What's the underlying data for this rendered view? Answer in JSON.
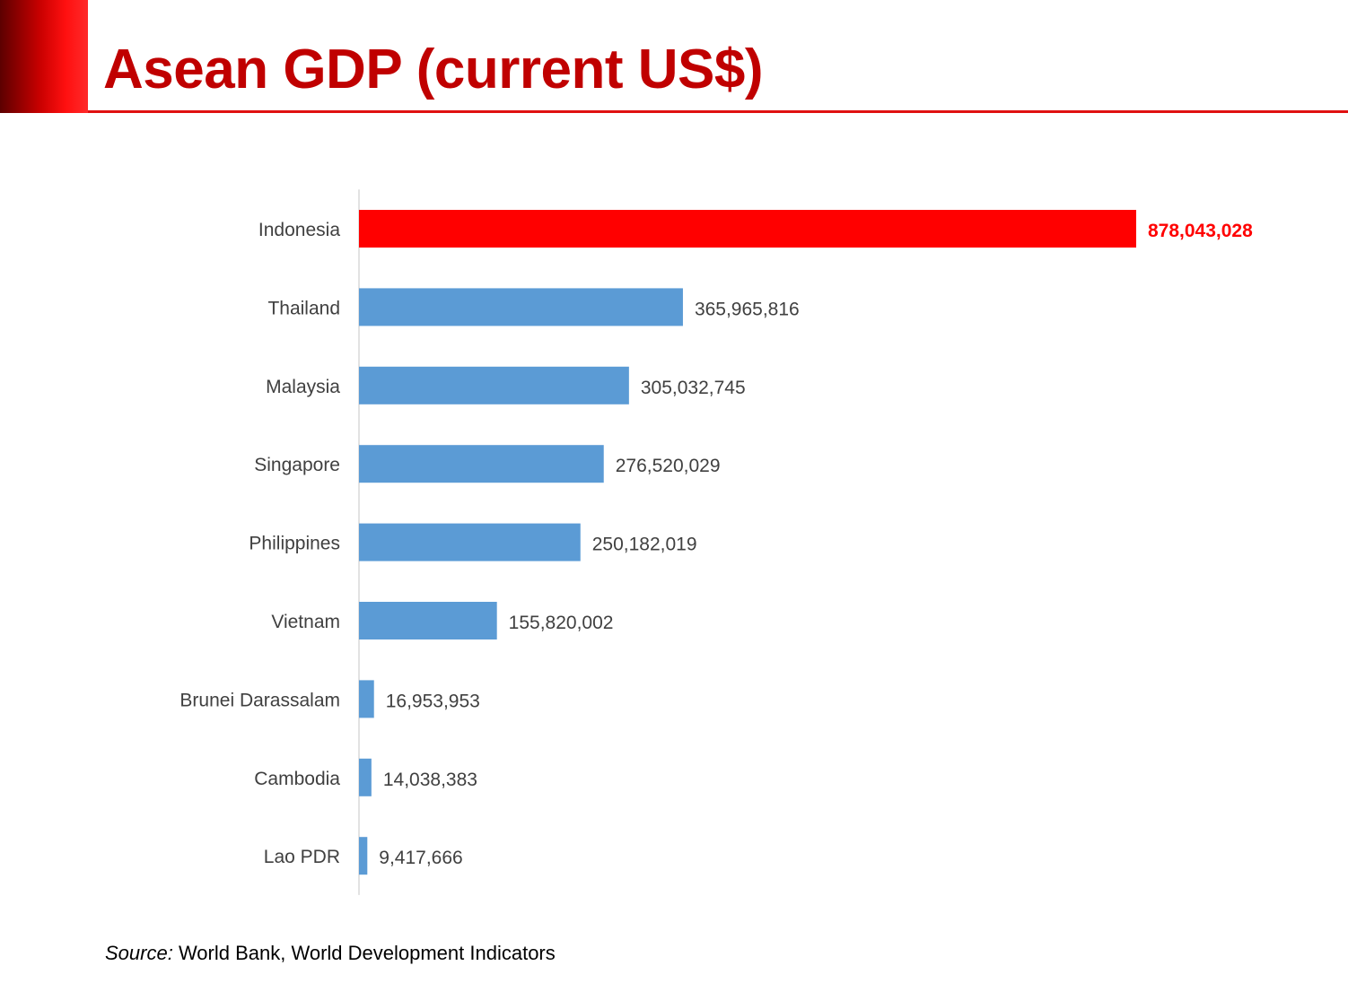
{
  "slide": {
    "title": "Asean GDP (current US$)",
    "source_label": "Source:",
    "source_text": " World Bank, World Development Indicators"
  },
  "colors": {
    "accent": "#c00000",
    "highlight_bar": "#ff0000",
    "bar": "#5b9bd5",
    "label_text": "#404040",
    "axis": "#d9d9d9"
  },
  "chart_data": {
    "type": "bar",
    "orientation": "horizontal",
    "title": "Asean GDP (current US$)",
    "categories": [
      "Indonesia",
      "Thailand",
      "Malaysia",
      "Singapore",
      "Philippines",
      "Vietnam",
      "Brunei Darassalam",
      "Cambodia",
      "Lao PDR"
    ],
    "values": [
      878043028,
      365965816,
      305032745,
      276520029,
      250182019,
      155820002,
      16953953,
      14038383,
      9417666
    ],
    "value_labels": [
      "878,043,028",
      "365,965,816",
      "305,032,745",
      "276,520,029",
      "250,182,019",
      "155,820,002",
      "16,953,953",
      "14,038,383",
      "9,417,666"
    ],
    "highlight": "Indonesia",
    "xlabel": "",
    "ylabel": "",
    "xlim": [
      0,
      878043028
    ],
    "grid": false
  }
}
